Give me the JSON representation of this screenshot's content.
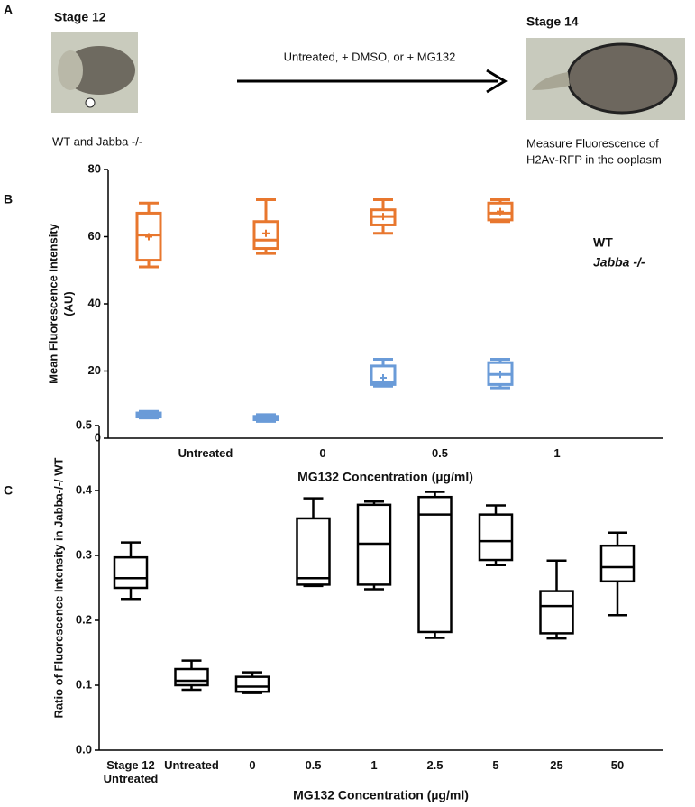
{
  "panel_a": {
    "panel_label": "A",
    "left_title": "Stage 12",
    "left_caption": "WT and Jabba -/-",
    "arrow_label": "Untreated, + DMSO, or  + MG132",
    "right_title": "Stage 14",
    "right_caption_lines": [
      "Measure Fluorescence of",
      "H2Av-RFP in the ooplasm"
    ]
  },
  "chart_data": [
    {
      "type": "box",
      "panel_label": "B",
      "ylabel_lines": [
        "Mean Fluorescence Intensity",
        "(AU)"
      ],
      "xlabel": "MG132 Concentration (µg/ml)",
      "categories": [
        "Untreated",
        "0",
        "0.5",
        "1"
      ],
      "ylim": [
        0,
        80
      ],
      "yticks": [
        0,
        20,
        40,
        60,
        80
      ],
      "legend_position": "right",
      "series": [
        {
          "name": "WT",
          "color": "#e8772e",
          "values": [
            {
              "min": 51,
              "q1": 53,
              "median": 60.5,
              "q3": 67,
              "max": 70,
              "mean": 60
            },
            {
              "min": 55,
              "q1": 56.5,
              "median": 59,
              "q3": 64.5,
              "max": 71,
              "mean": 61
            },
            {
              "min": 61,
              "q1": 63.5,
              "median": 66,
              "q3": 68,
              "max": 71,
              "mean": 66
            },
            {
              "min": 64.5,
              "q1": 65,
              "median": 67,
              "q3": 70,
              "max": 71,
              "mean": 67.5
            }
          ]
        },
        {
          "name": "Jabba -/-",
          "color": "#6a9bd8",
          "values": [
            {
              "min": 6,
              "q1": 6.3,
              "median": 6.8,
              "q3": 7.5,
              "max": 8,
              "mean": 6.8
            },
            {
              "min": 5,
              "q1": 5.5,
              "median": 6,
              "q3": 6.5,
              "max": 7,
              "mean": 6
            },
            {
              "min": 15.5,
              "q1": 16,
              "median": 16.5,
              "q3": 21.5,
              "max": 23.5,
              "mean": 18
            },
            {
              "min": 15,
              "q1": 16,
              "median": 19,
              "q3": 22.5,
              "max": 23.5,
              "mean": 19
            }
          ]
        }
      ]
    },
    {
      "type": "box",
      "panel_label": "C",
      "ylabel": "Ratio of Fluorescence Intensity in Jabba-/-/ WT",
      "xlabel": "MG132 Concentration (µg/ml)",
      "categories": [
        "Stage 12 Untreated",
        "Untreated",
        "0",
        "0.5",
        "1",
        "2.5",
        "5",
        "25",
        "50"
      ],
      "ylim": [
        0,
        0.5
      ],
      "yticks": [
        {
          "value": 0,
          "label": "0.0"
        },
        0.1,
        0.2,
        0.3,
        0.4,
        0.5
      ],
      "series": [
        {
          "color": "#000000",
          "values": [
            {
              "min": 0.233,
              "q1": 0.25,
              "median": 0.265,
              "q3": 0.297,
              "max": 0.32
            },
            {
              "min": 0.093,
              "q1": 0.1,
              "median": 0.107,
              "q3": 0.125,
              "max": 0.138
            },
            {
              "min": 0.088,
              "q1": 0.09,
              "median": 0.098,
              "q3": 0.113,
              "max": 0.12
            },
            {
              "min": 0.253,
              "q1": 0.255,
              "median": 0.265,
              "q3": 0.357,
              "max": 0.388
            },
            {
              "min": 0.248,
              "q1": 0.255,
              "median": 0.318,
              "q3": 0.378,
              "max": 0.383
            },
            {
              "min": 0.173,
              "q1": 0.182,
              "median": 0.363,
              "q3": 0.39,
              "max": 0.398
            },
            {
              "min": 0.285,
              "q1": 0.293,
              "median": 0.322,
              "q3": 0.363,
              "max": 0.377
            },
            {
              "min": 0.172,
              "q1": 0.18,
              "median": 0.222,
              "q3": 0.245,
              "max": 0.292
            },
            {
              "min": 0.208,
              "q1": 0.26,
              "median": 0.282,
              "q3": 0.315,
              "max": 0.335
            }
          ]
        }
      ]
    }
  ]
}
